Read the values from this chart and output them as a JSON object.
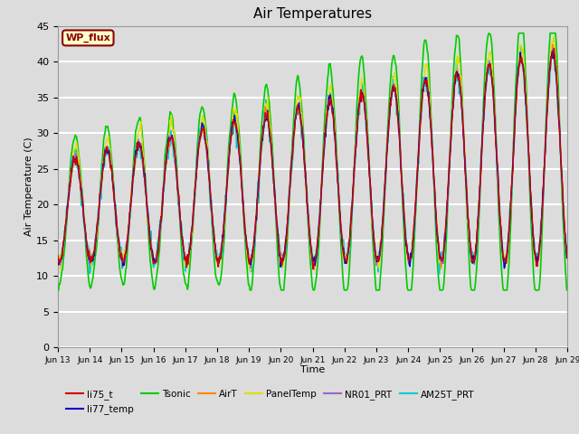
{
  "title": "Air Temperatures",
  "xlabel": "Time",
  "ylabel": "Air Temperature (C)",
  "ylim": [
    0,
    45
  ],
  "plot_bg_color": "#dcdcdc",
  "grid_color": "white",
  "annotation_label": "WP_flux",
  "annotation_bg": "#ffffcc",
  "annotation_border": "#8b0000",
  "series": {
    "li75_t": {
      "color": "#cc0000",
      "zorder": 5,
      "lw": 1.0
    },
    "li77_temp": {
      "color": "#0000cc",
      "zorder": 5,
      "lw": 1.0
    },
    "Tsonic": {
      "color": "#00cc00",
      "zorder": 3,
      "lw": 1.2
    },
    "AirT": {
      "color": "#ff8800",
      "zorder": 5,
      "lw": 1.0
    },
    "PanelTemp": {
      "color": "#dddd00",
      "zorder": 5,
      "lw": 1.0
    },
    "NR01_PRT": {
      "color": "#9966cc",
      "zorder": 5,
      "lw": 1.0
    },
    "AM25T_PRT": {
      "color": "#00cccc",
      "zorder": 4,
      "lw": 1.2
    }
  },
  "legend_order": [
    "li75_t",
    "li77_temp",
    "Tsonic",
    "AirT",
    "PanelTemp",
    "NR01_PRT",
    "AM25T_PRT"
  ],
  "xtick_labels": [
    "Jun 13",
    "Jun 14",
    "Jun 15",
    "Jun 16",
    "Jun 17",
    "Jun 18",
    "Jun 19",
    "Jun 20",
    "Jun 21",
    "Jun 22",
    "Jun 23",
    "Jun 24",
    "Jun 25",
    "Jun 26",
    "Jun 27",
    "Jun 28",
    "Jun 29"
  ],
  "ytick_values": [
    0,
    5,
    10,
    15,
    20,
    25,
    30,
    35,
    40,
    45
  ]
}
